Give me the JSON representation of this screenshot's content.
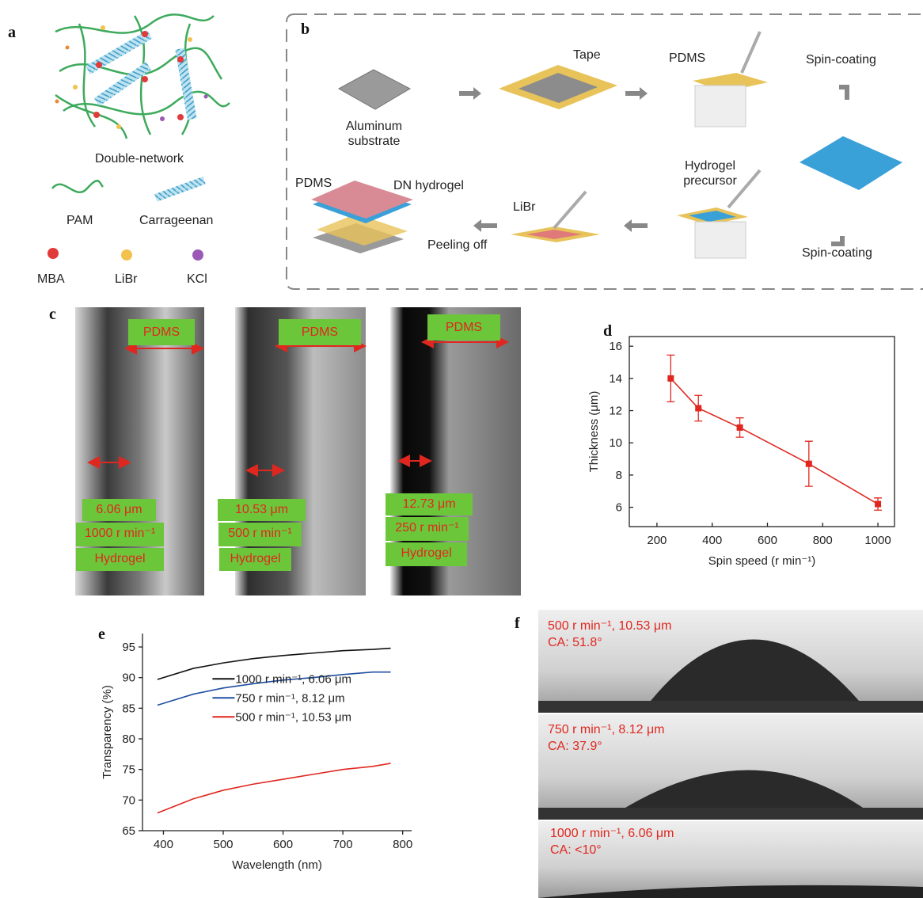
{
  "panel_labels": [
    "a",
    "b",
    "c",
    "d",
    "e",
    "f"
  ],
  "panel_a": {
    "caption": "Double-network",
    "legend": [
      "PAM",
      "Carrageenan",
      "MBA",
      "LiBr",
      "KCl"
    ]
  },
  "panel_b": {
    "steps": [
      "Aluminum substrate",
      "Tape",
      "PDMS",
      "Spin-coating",
      "Spin-coating",
      "Hydrogel precursor",
      "LiBr",
      "Peeling off",
      "PDMS",
      "DN hydrogel"
    ]
  },
  "panel_c": {
    "images": [
      {
        "top": "PDMS",
        "thickness": "6.06 μm",
        "speed": "1000 r min⁻¹",
        "layer": "Hydrogel"
      },
      {
        "top": "PDMS",
        "thickness": "10.53 μm",
        "speed": "500 r min⁻¹",
        "layer": "Hydrogel"
      },
      {
        "top": "PDMS",
        "thickness": "12.73 μm",
        "speed": "250 r min⁻¹",
        "layer": "Hydrogel"
      }
    ]
  },
  "chart_data": [
    {
      "type": "line",
      "x_label": "Spin speed (r min⁻¹)",
      "y_label": "Thickness (μm)",
      "x": [
        250,
        350,
        500,
        750,
        1000
      ],
      "series": [
        {
          "color": "#e0271f",
          "values": [
            14.0,
            12.15,
            10.95,
            8.7,
            6.2
          ],
          "errors": [
            1.45,
            0.8,
            0.6,
            1.4,
            0.38
          ]
        }
      ],
      "marker": "square",
      "frame": true,
      "xlim": [
        100,
        1060
      ],
      "xticks": [
        200,
        400,
        600,
        800,
        1000
      ],
      "ylim": [
        4.8,
        16.6
      ],
      "yticks": [
        6,
        8,
        10,
        12,
        14,
        16
      ]
    },
    {
      "type": "line",
      "x_label": "Wavelength (nm)",
      "y_label": "Transparency (%)",
      "x": [
        390,
        450,
        500,
        550,
        600,
        650,
        700,
        750,
        780
      ],
      "series": [
        {
          "name": "1000 r min⁻¹, 6.06 μm",
          "color": "#111111",
          "values": [
            89.7,
            91.5,
            92.4,
            93.1,
            93.6,
            94.0,
            94.4,
            94.6,
            94.8
          ]
        },
        {
          "name": "750 r min⁻¹, 8.12 μm",
          "color": "#1f4fa0",
          "values": [
            85.5,
            87.3,
            88.3,
            89.0,
            89.6,
            90.0,
            90.5,
            90.9,
            90.9
          ]
        },
        {
          "name": "500 r min⁻¹, 10.53 μm",
          "color": "#e0271f",
          "values": [
            67.9,
            70.2,
            71.6,
            72.6,
            73.4,
            74.2,
            75.0,
            75.5,
            76.0
          ]
        }
      ],
      "legend": "center",
      "frame": false,
      "xlim": [
        365,
        815
      ],
      "xticks": [
        400,
        500,
        600,
        700,
        800
      ],
      "ylim": [
        65,
        97.2
      ],
      "yticks": [
        65,
        70,
        75,
        80,
        85,
        90,
        95
      ]
    }
  ],
  "panel_f": {
    "images": [
      {
        "condition": "500 r min⁻¹, 10.53 μm",
        "angle": "CA: 51.8°"
      },
      {
        "condition": "750 r min⁻¹, 8.12 μm",
        "angle": "CA: 37.9°"
      },
      {
        "condition": "1000 r min⁻¹, 6.06 μm",
        "angle": "CA: <10°"
      }
    ]
  }
}
